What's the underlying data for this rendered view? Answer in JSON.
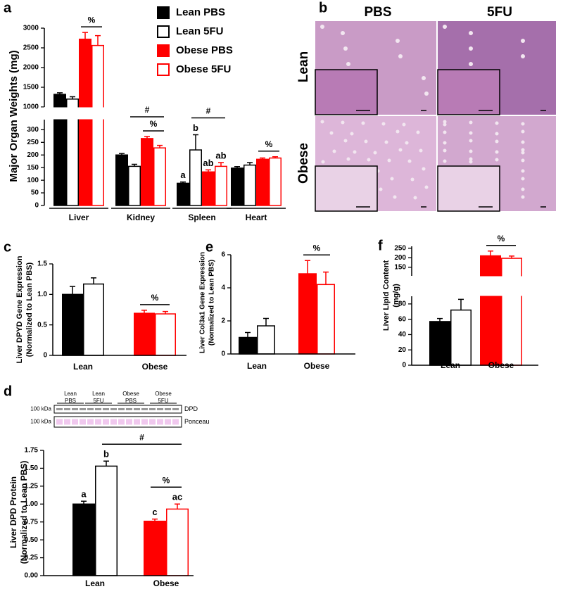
{
  "chart_data": [
    {
      "panel": "a",
      "type": "bar",
      "ylabel": "Major Organ Weights (mg)",
      "categories": [
        "Liver",
        "Kidney",
        "Spleen",
        "Heart"
      ],
      "series": [
        {
          "name": "Lean PBS",
          "color": "#000000",
          "fill": true,
          "values": [
            1320,
            200,
            88,
            148
          ],
          "errors": [
            40,
            6,
            5,
            6
          ],
          "letters": [
            null,
            null,
            "a",
            null
          ]
        },
        {
          "name": "Lean 5FU",
          "color": "#000000",
          "fill": false,
          "values": [
            1200,
            155,
            220,
            160
          ],
          "errors": [
            60,
            8,
            60,
            10
          ],
          "letters": [
            null,
            null,
            "b",
            null
          ]
        },
        {
          "name": "Obese PBS",
          "color": "#ff0000",
          "fill": true,
          "values": [
            2720,
            265,
            133,
            183
          ],
          "errors": [
            170,
            8,
            8,
            5
          ],
          "letters": [
            null,
            null,
            "ab",
            null
          ]
        },
        {
          "name": "Obese 5FU",
          "color": "#ff0000",
          "fill": false,
          "values": [
            2560,
            228,
            155,
            188
          ],
          "errors": [
            250,
            10,
            15,
            5
          ],
          "letters": [
            null,
            null,
            "ab",
            null
          ]
        }
      ],
      "ylim": [
        0,
        3000
      ],
      "ybreak": [
        340,
        1000
      ],
      "yticks": [
        0,
        50,
        100,
        150,
        200,
        250,
        300,
        1000,
        1500,
        2000,
        2500,
        3000
      ],
      "brackets": [
        {
          "text": "%",
          "from": [
            0,
            2
          ],
          "to": [
            0,
            3
          ]
        },
        {
          "text": "%",
          "from": [
            1,
            2
          ],
          "to": [
            1,
            3
          ]
        },
        {
          "text": "#",
          "from": [
            1,
            1
          ],
          "to": [
            1,
            3
          ]
        },
        {
          "text": "#",
          "from": [
            2,
            1
          ],
          "to": [
            2,
            3
          ]
        },
        {
          "text": "%",
          "from": [
            3,
            2
          ],
          "to": [
            3,
            3
          ]
        }
      ]
    },
    {
      "panel": "b",
      "type": "image-grid",
      "columns": [
        "PBS",
        "5FU"
      ],
      "rows": [
        "Lean",
        "Obese"
      ]
    },
    {
      "panel": "c",
      "type": "bar",
      "ylabel": [
        "Liver DPYD Gene Expression",
        "(Normalized to Lean PBS)"
      ],
      "categories": [
        "Lean",
        "Obese"
      ],
      "series": [
        {
          "colors": [
            "#000000",
            "#ff0000"
          ],
          "fill": true,
          "values": [
            1.0,
            0.69
          ],
          "errors": [
            0.13,
            0.05
          ]
        },
        {
          "colors": [
            "#000000",
            "#ff0000"
          ],
          "fill": false,
          "values": [
            1.17,
            0.68
          ],
          "errors": [
            0.1,
            0.04
          ]
        }
      ],
      "ylim": [
        0,
        1.5
      ],
      "yticks": [
        0,
        0.5,
        {
          "value": 1,
          "label": "1.0"
        },
        1.5
      ],
      "brackets": [
        {
          "text": "%",
          "from": [
            1,
            0
          ],
          "to": [
            1,
            1
          ]
        }
      ]
    },
    {
      "panel": "d",
      "type": "bar",
      "ylabel": [
        "Liver DPD Protein",
        "(Normalized to Lean PBS)"
      ],
      "blot": {
        "lanes": [
          [
            "Lean",
            "PBS"
          ],
          [
            "Lean",
            "5FU"
          ],
          [
            "Obese",
            "PBS"
          ],
          [
            "Obese",
            "5FU"
          ]
        ],
        "rows": [
          {
            "marker": "100 kDa",
            "label": "DPD"
          },
          {
            "marker": "100 kDa",
            "label": "Ponceau"
          }
        ]
      },
      "categories": [
        "Lean",
        "Obese"
      ],
      "series": [
        {
          "colors": [
            "#000000",
            "#ff0000"
          ],
          "fill": true,
          "values": [
            1.0,
            0.76
          ],
          "errors": [
            0.04,
            0.03
          ],
          "letters": [
            "a",
            "c"
          ]
        },
        {
          "colors": [
            "#000000",
            "#ff0000"
          ],
          "fill": false,
          "values": [
            1.53,
            0.93
          ],
          "errors": [
            0.07,
            0.07
          ],
          "letters": [
            "b",
            "ac"
          ]
        }
      ],
      "ylim": [
        0,
        1.75
      ],
      "yticks": [
        {
          "value": 0,
          "label": "0.00"
        },
        {
          "value": 0.25,
          "label": "0.25"
        },
        {
          "value": 0.5,
          "label": "0.50"
        },
        {
          "value": 0.75,
          "label": "0.75"
        },
        {
          "value": 1,
          "label": "1.00"
        },
        {
          "value": 1.25,
          "label": "1.25"
        },
        {
          "value": 1.5,
          "label": "1.50"
        },
        {
          "value": 1.75,
          "label": "1.75"
        }
      ],
      "brackets": [
        {
          "text": "%",
          "from": [
            1,
            0
          ],
          "to": [
            1,
            1
          ]
        },
        {
          "text": "#",
          "from": [
            0,
            1
          ],
          "to": [
            1,
            1
          ]
        }
      ]
    },
    {
      "panel": "e",
      "type": "bar",
      "ylabel": [
        "Liver Col3a1 Gene Expression",
        "(Normalized to Lean PBS)"
      ],
      "categories": [
        "Lean",
        "Obese"
      ],
      "series": [
        {
          "colors": [
            "#000000",
            "#ff0000"
          ],
          "fill": true,
          "values": [
            1.0,
            4.85
          ],
          "errors": [
            0.3,
            0.8
          ]
        },
        {
          "colors": [
            "#000000",
            "#ff0000"
          ],
          "fill": false,
          "values": [
            1.7,
            4.2
          ],
          "errors": [
            0.45,
            0.75
          ]
        }
      ],
      "ylim": [
        0,
        6
      ],
      "yticks": [
        0,
        2,
        4,
        6
      ],
      "brackets": [
        {
          "text": "%",
          "from": [
            1,
            0
          ],
          "to": [
            1,
            1
          ]
        }
      ]
    },
    {
      "panel": "f",
      "type": "bar",
      "ylabel": [
        "Liver Lipid Content",
        "(mg/g)"
      ],
      "categories": [
        "Lean",
        "Obese"
      ],
      "series": [
        {
          "colors": [
            "#000000",
            "#ff0000"
          ],
          "fill": true,
          "values": [
            57,
            210
          ],
          "errors": [
            4,
            25
          ]
        },
        {
          "colors": [
            "#000000",
            "#ff0000"
          ],
          "fill": false,
          "values": [
            72,
            197
          ],
          "errors": [
            14,
            12
          ]
        }
      ],
      "ylim": [
        0,
        260
      ],
      "ybreak": [
        90,
        105
      ],
      "yticks": [
        0,
        20,
        40,
        60,
        80,
        150,
        200,
        250
      ],
      "brackets": [
        {
          "text": "%",
          "from": [
            1,
            0
          ],
          "to": [
            1,
            1
          ]
        }
      ]
    }
  ]
}
